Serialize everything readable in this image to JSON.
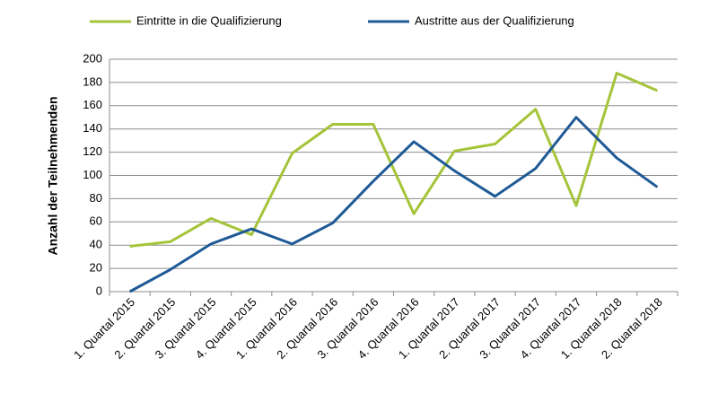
{
  "chart_data": {
    "type": "line",
    "y_label": "Anzahl der Teilnehmenden",
    "categories": [
      "1. Quartal 2015",
      "2. Quartal 2015",
      "3. Quartal 2015",
      "4. Quartal 2015",
      "1. Quartal 2016",
      "2. Quartal 2016",
      "3. Quartal 2016",
      "4. Quartal 2016",
      "1. Quartal 2017",
      "2. Quartal 2017",
      "3. Quartal 2017",
      "4. Quartal 2017",
      "1. Quartal 2018",
      "2. Quartal 2018"
    ],
    "series": [
      {
        "name": "Eintritte in die Qualifizierung",
        "color": "#a5c43a",
        "values": [
          39,
          43,
          63,
          49,
          119,
          144,
          144,
          67,
          121,
          127,
          157,
          74,
          188,
          173
        ]
      },
      {
        "name": "Austritte aus der Qualifizierung",
        "color": "#1f5a96",
        "values": [
          0,
          19,
          41,
          54,
          41,
          59,
          95,
          129,
          104,
          82,
          106,
          150,
          115,
          90
        ]
      }
    ],
    "ylim": [
      0,
      200
    ],
    "yticks": [
      0,
      20,
      40,
      60,
      80,
      100,
      120,
      140,
      160,
      180,
      200
    ],
    "grid": true,
    "legend": "top"
  }
}
